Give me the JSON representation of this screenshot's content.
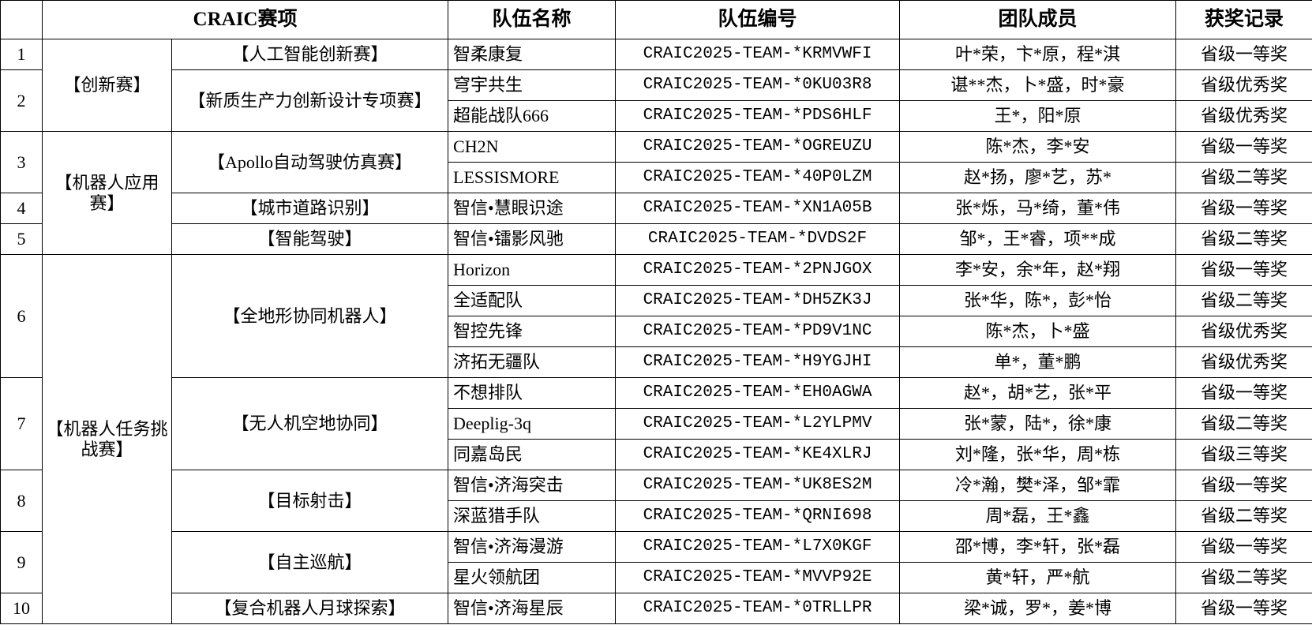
{
  "header": {
    "index": "",
    "event": "CRAIC赛项",
    "team_name": "队伍名称",
    "team_id": "队伍编号",
    "members": "团队成员",
    "award": "获奖记录"
  },
  "categories": [
    {
      "name": "【创新赛】",
      "events": [
        {
          "no": "1",
          "name": "【人工智能创新赛】",
          "teams": [
            {
              "name": "智柔康复",
              "id": "CRAIC2025-TEAM-*KRMVWFI",
              "members": "叶*荣，卞*原，程*淇",
              "award": "省级一等奖"
            }
          ]
        },
        {
          "no": "2",
          "name": "【新质生产力创新设计专项赛】",
          "teams": [
            {
              "name": "穹宇共生",
              "id": "CRAIC2025-TEAM-*0KU03R8",
              "members": "谌**杰，卜*盛，时*豪",
              "award": "省级优秀奖"
            },
            {
              "name": "超能战队666",
              "id": "CRAIC2025-TEAM-*PDS6HLF",
              "members": "王*，阳*原",
              "award": "省级优秀奖"
            }
          ]
        }
      ]
    },
    {
      "name": "【机器人应用赛】",
      "events": [
        {
          "no": "3",
          "name": "【Apollo自动驾驶仿真赛】",
          "teams": [
            {
              "name": "CH2N",
              "id": "CRAIC2025-TEAM-*OGREUZU",
              "members": "陈*杰，李*安",
              "award": "省级一等奖"
            },
            {
              "name": "LESSISMORE",
              "id": "CRAIC2025-TEAM-*40P0LZM",
              "members": "赵*扬，廖*艺，苏*",
              "award": "省级二等奖"
            }
          ]
        },
        {
          "no": "4",
          "name": "【城市道路识别】",
          "teams": [
            {
              "name": "智信•慧眼识途",
              "id": "CRAIC2025-TEAM-*XN1A05B",
              "members": "张*烁，马*绮，董*伟",
              "award": "省级一等奖"
            }
          ]
        },
        {
          "no": "5",
          "name": "【智能驾驶】",
          "teams": [
            {
              "name": "智信•镭影风驰",
              "id": "CRAIC2025-TEAM-*DVDS2F",
              "members": "邹*，王*睿，项**成",
              "award": "省级二等奖"
            }
          ]
        }
      ]
    },
    {
      "name": "【机器人任务挑战赛】",
      "events": [
        {
          "no": "6",
          "name": "【全地形协同机器人】",
          "teams": [
            {
              "name": "Horizon",
              "id": "CRAIC2025-TEAM-*2PNJGOX",
              "members": "李*安，余*年，赵*翔",
              "award": "省级一等奖"
            },
            {
              "name": "全适配队",
              "id": "CRAIC2025-TEAM-*DH5ZK3J",
              "members": "张*华，陈*，彭*怡",
              "award": "省级二等奖"
            },
            {
              "name": "智控先锋",
              "id": "CRAIC2025-TEAM-*PD9V1NC",
              "members": "陈*杰，卜*盛",
              "award": "省级优秀奖"
            },
            {
              "name": "济拓无疆队",
              "id": "CRAIC2025-TEAM-*H9YGJHI",
              "members": "单*，董*鹏",
              "award": "省级优秀奖"
            }
          ]
        },
        {
          "no": "7",
          "name": "【无人机空地协同】",
          "teams": [
            {
              "name": "不想排队",
              "id": "CRAIC2025-TEAM-*EH0AGWA",
              "members": "赵*，胡*艺，张*平",
              "award": "省级一等奖"
            },
            {
              "name": "Deeplig-3q",
              "id": "CRAIC2025-TEAM-*L2YLPMV",
              "members": "张*蒙，陆*，徐*康",
              "award": "省级二等奖"
            },
            {
              "name": "同嘉岛民",
              "id": "CRAIC2025-TEAM-*KE4XLRJ",
              "members": "刘*隆，张*华，周*栋",
              "award": "省级三等奖"
            }
          ]
        },
        {
          "no": "8",
          "name": "【目标射击】",
          "teams": [
            {
              "name": "智信•济海突击",
              "id": "CRAIC2025-TEAM-*UK8ES2M",
              "members": "冷*瀚，樊*泽，邹*霏",
              "award": "省级一等奖"
            },
            {
              "name": "深蓝猎手队",
              "id": "CRAIC2025-TEAM-*QRNI698",
              "members": "周*磊，王*鑫",
              "award": "省级二等奖"
            }
          ]
        },
        {
          "no": "9",
          "name": "【自主巡航】",
          "teams": [
            {
              "name": "智信•济海漫游",
              "id": "CRAIC2025-TEAM-*L7X0KGF",
              "members": "邵*博，李*轩，张*磊",
              "award": "省级一等奖"
            },
            {
              "name": "星火领航团",
              "id": "CRAIC2025-TEAM-*MVVP92E",
              "members": "黄*轩，严*航",
              "award": "省级二等奖"
            }
          ]
        },
        {
          "no": "10",
          "name": "【复合机器人月球探索】",
          "teams": [
            {
              "name": "智信•济海星辰",
              "id": "CRAIC2025-TEAM-*0TRLLPR",
              "members": "梁*诚，罗*，姜*博",
              "award": "省级一等奖"
            }
          ]
        }
      ]
    }
  ]
}
